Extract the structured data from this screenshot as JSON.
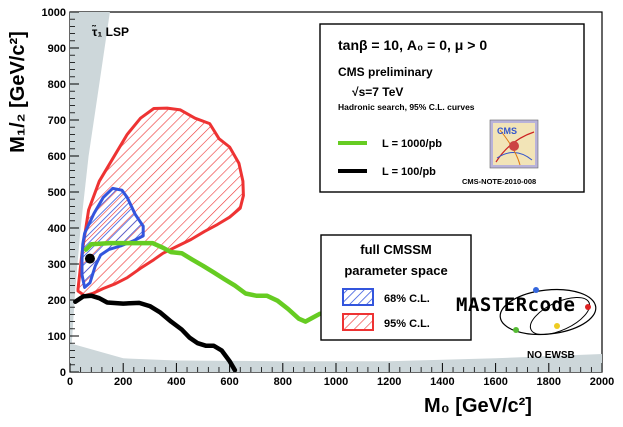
{
  "chart_data": {
    "type": "line",
    "xlabel": "M₀ [GeV/c²]",
    "ylabel": "M₁/₂ [GeV/c²]",
    "xlim": [
      0,
      2000
    ],
    "ylim": [
      0,
      1000
    ],
    "x_ticks": [
      0,
      200,
      400,
      600,
      800,
      1000,
      1200,
      1400,
      1600,
      1800,
      2000
    ],
    "y_ticks": [
      0,
      100,
      200,
      300,
      400,
      500,
      600,
      700,
      800,
      900,
      1000
    ],
    "grid": false,
    "legend_top": {
      "title_line1": "tanβ = 10, A₀ = 0, μ > 0",
      "title_line2": "CMS preliminary",
      "energy": "√s=7 TeV",
      "subtitle": "Hadronic search, 95% C.L. curves",
      "entries": [
        {
          "label": "L = 1000/pb",
          "color": "#66cc22"
        },
        {
          "label": "L = 100/pb",
          "color": "#000000"
        }
      ],
      "note": "CMS-NOTE-2010-008"
    },
    "legend_bottom": {
      "title_line1": "full CMSSM",
      "title_line2": "parameter space",
      "entries": [
        {
          "label": "68% C.L.",
          "color": "#3355dd"
        },
        {
          "label": "95% C.L.",
          "color": "#ee3333"
        }
      ]
    },
    "annotations": {
      "stau": "τ̃₁ LSP",
      "no_ewsb": "NO EWSB",
      "logo_text": "MASTERcode"
    },
    "series": [
      {
        "name": "L = 1000/pb",
        "color": "#66cc22",
        "points": [
          [
            60,
            340
          ],
          [
            80,
            355
          ],
          [
            150,
            358
          ],
          [
            200,
            358
          ],
          [
            250,
            358
          ],
          [
            310,
            358
          ],
          [
            350,
            345
          ],
          [
            380,
            333
          ],
          [
            420,
            330
          ],
          [
            460,
            312
          ],
          [
            500,
            295
          ],
          [
            540,
            277
          ],
          [
            580,
            258
          ],
          [
            620,
            240
          ],
          [
            660,
            218
          ],
          [
            700,
            212
          ],
          [
            740,
            212
          ],
          [
            780,
            198
          ],
          [
            820,
            175
          ],
          [
            860,
            148
          ],
          [
            885,
            140
          ],
          [
            910,
            150
          ],
          [
            940,
            162
          ]
        ]
      },
      {
        "name": "L = 100/pb",
        "color": "#000000",
        "points": [
          [
            20,
            195
          ],
          [
            50,
            210
          ],
          [
            80,
            212
          ],
          [
            110,
            205
          ],
          [
            140,
            193
          ],
          [
            200,
            190
          ],
          [
            260,
            192
          ],
          [
            300,
            183
          ],
          [
            340,
            165
          ],
          [
            380,
            140
          ],
          [
            420,
            118
          ],
          [
            450,
            95
          ],
          [
            480,
            80
          ],
          [
            510,
            73
          ],
          [
            540,
            73
          ],
          [
            570,
            60
          ],
          [
            600,
            30
          ],
          [
            620,
            5
          ]
        ]
      }
    ],
    "contours": [
      {
        "name": "95% C.L.",
        "color": "#ee3333",
        "fill_hatch": true,
        "points": [
          [
            30,
            230
          ],
          [
            45,
            330
          ],
          [
            70,
            450
          ],
          [
            110,
            530
          ],
          [
            165,
            598
          ],
          [
            215,
            660
          ],
          [
            265,
            705
          ],
          [
            315,
            732
          ],
          [
            365,
            733
          ],
          [
            415,
            728
          ],
          [
            470,
            705
          ],
          [
            525,
            690
          ],
          [
            560,
            648
          ],
          [
            600,
            625
          ],
          [
            635,
            580
          ],
          [
            650,
            530
          ],
          [
            652,
            490
          ],
          [
            640,
            455
          ],
          [
            600,
            430
          ],
          [
            555,
            410
          ],
          [
            505,
            390
          ],
          [
            455,
            368
          ],
          [
            405,
            350
          ],
          [
            350,
            330
          ],
          [
            315,
            312
          ],
          [
            265,
            288
          ],
          [
            215,
            262
          ],
          [
            170,
            245
          ],
          [
            125,
            232
          ],
          [
            85,
            218
          ],
          [
            55,
            212
          ],
          [
            30,
            225
          ]
        ]
      },
      {
        "name": "68% C.L.",
        "color": "#3355dd",
        "fill_hatch": true,
        "points": [
          [
            55,
            385
          ],
          [
            90,
            440
          ],
          [
            125,
            485
          ],
          [
            160,
            510
          ],
          [
            195,
            505
          ],
          [
            215,
            485
          ],
          [
            245,
            438
          ],
          [
            275,
            405
          ],
          [
            275,
            378
          ],
          [
            240,
            365
          ],
          [
            190,
            350
          ],
          [
            145,
            340
          ],
          [
            115,
            325
          ],
          [
            95,
            295
          ],
          [
            75,
            248
          ],
          [
            55,
            235
          ],
          [
            45,
            270
          ],
          [
            45,
            315
          ],
          [
            48,
            355
          ],
          [
            55,
            385
          ]
        ]
      }
    ],
    "best_fit_point": [
      75,
      315
    ],
    "excluded_regions": [
      {
        "name": "stau LSP",
        "color": "#cdd7da",
        "points": [
          [
            0,
            0
          ],
          [
            20,
            230
          ],
          [
            40,
            400
          ],
          [
            70,
            600
          ],
          [
            110,
            800
          ],
          [
            150,
            1000
          ],
          [
            0,
            1000
          ]
        ]
      },
      {
        "name": "no EWSB",
        "color": "#cdd7da",
        "points": [
          [
            0,
            80
          ],
          [
            200,
            38
          ],
          [
            400,
            32
          ],
          [
            800,
            30
          ],
          [
            1200,
            30
          ],
          [
            1600,
            38
          ],
          [
            2000,
            50
          ],
          [
            2000,
            0
          ],
          [
            0,
            0
          ]
        ]
      }
    ]
  }
}
